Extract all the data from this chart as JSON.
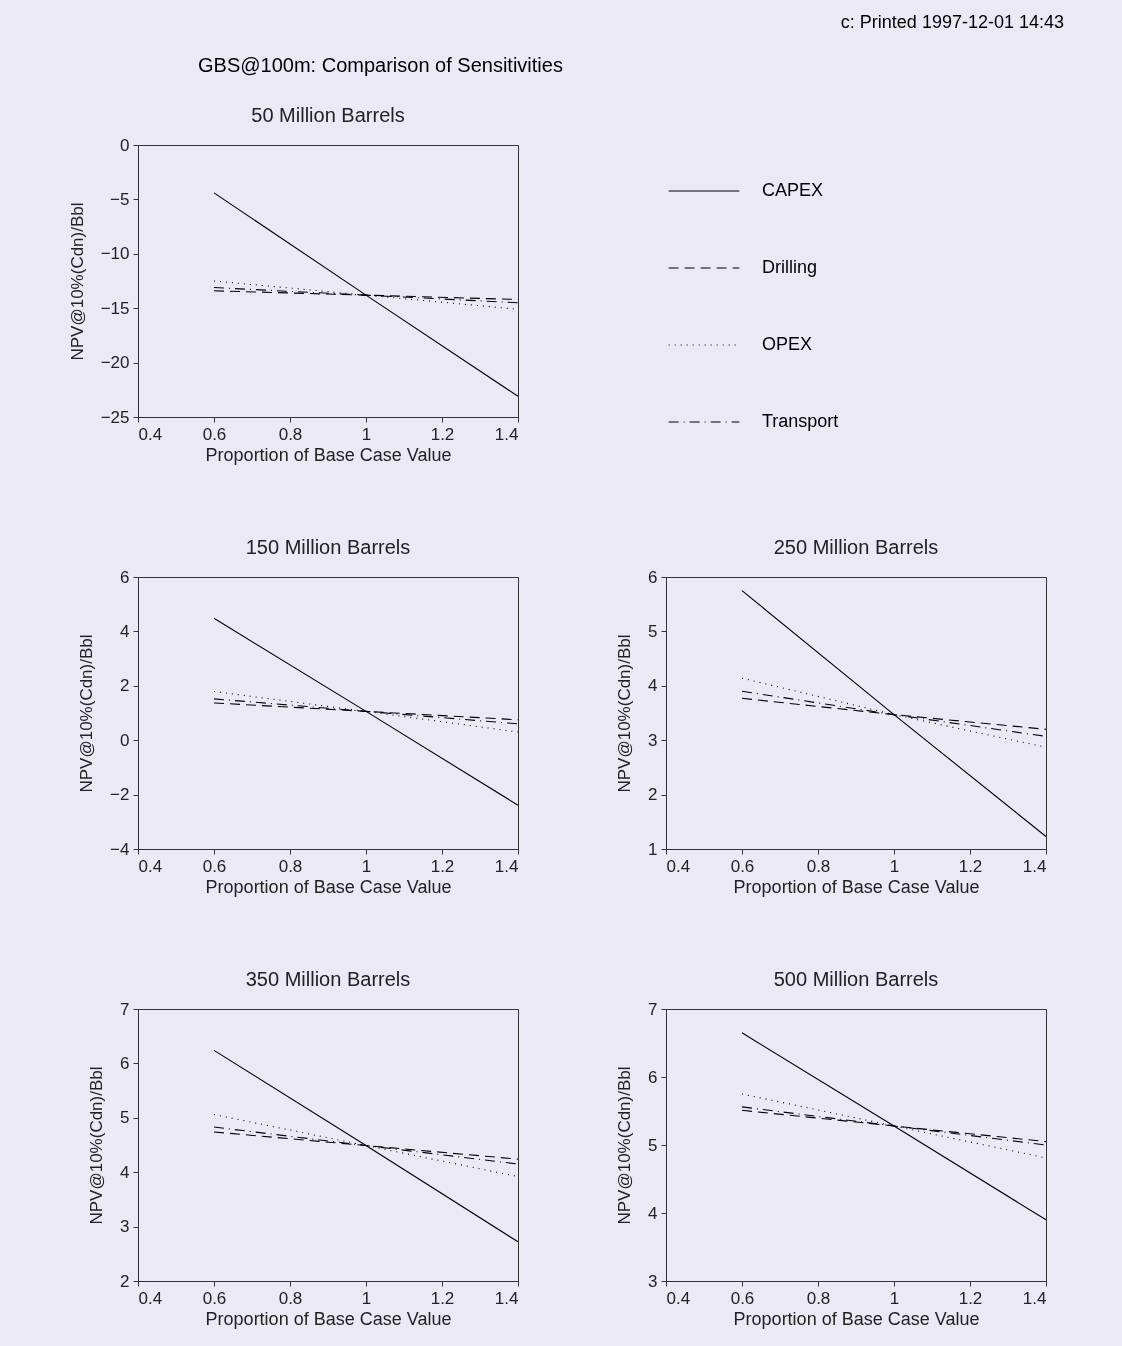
{
  "chart_data": [
    {
      "type": "line",
      "title": "50 Million Barrels",
      "xlabel": "Proportion of Base Case Value",
      "ylabel": "NPV@10%(Cdn)/Bbl",
      "annotations": [
        "GBS@100m: Comparison of Sensitivities",
        "c: Printed 1997-12-01 14:43"
      ],
      "x": [
        0.6,
        1,
        1.4
      ],
      "xlim": [
        0.4,
        1.4
      ],
      "xticks": [
        0.4,
        0.6,
        0.8,
        1,
        1.2,
        1.4
      ],
      "ylim": [
        -25,
        0
      ],
      "yticks": [
        -25,
        -20,
        -15,
        -10,
        -5,
        0
      ],
      "grid": false,
      "legend": "right",
      "series": [
        {
          "name": "CAPEX",
          "color": "#000000",
          "line_style": "solid",
          "values": [
            -4.4,
            -13.8,
            -23.1
          ]
        },
        {
          "name": "Drilling",
          "color": "#000000",
          "line_style": "dashed",
          "values": [
            -13.4,
            -13.8,
            -14.2
          ]
        },
        {
          "name": "OPEX",
          "color": "#000000",
          "line_style": "dotted",
          "values": [
            -12.5,
            -13.8,
            -15.1
          ]
        },
        {
          "name": "Transport",
          "color": "#000000",
          "line_style": "dashdot",
          "values": [
            -13.1,
            -13.8,
            -14.5
          ]
        }
      ]
    },
    {
      "type": "line",
      "title": "150 Million Barrels",
      "xlabel": "Proportion of Base Case Value",
      "ylabel": "NPV@10%(Cdn)/Bbl",
      "x": [
        0.6,
        1,
        1.4
      ],
      "xlim": [
        0.4,
        1.4
      ],
      "xticks": [
        0.4,
        0.6,
        0.8,
        1,
        1.2,
        1.4
      ],
      "ylim": [
        -4,
        6
      ],
      "yticks": [
        -4,
        -2,
        0,
        2,
        4,
        6
      ],
      "grid": false,
      "series": [
        {
          "color": "#000000",
          "line_style": "solid",
          "values": [
            4.48,
            1.06,
            -2.39
          ]
        },
        {
          "color": "#000000",
          "line_style": "dashed",
          "values": [
            1.37,
            1.06,
            0.75
          ]
        },
        {
          "color": "#000000",
          "line_style": "dotted",
          "values": [
            1.79,
            1.06,
            0.3
          ]
        },
        {
          "color": "#000000",
          "line_style": "dashdot",
          "values": [
            1.52,
            1.06,
            0.6
          ]
        }
      ]
    },
    {
      "type": "line",
      "title": "250 Million Barrels",
      "xlabel": "Proportion of Base Case Value",
      "ylabel": "NPV@10%(Cdn)/Bbl",
      "x": [
        0.6,
        1,
        1.4
      ],
      "xlim": [
        0.4,
        1.4
      ],
      "xticks": [
        0.4,
        0.6,
        0.8,
        1,
        1.2,
        1.4
      ],
      "ylim": [
        1,
        6
      ],
      "yticks": [
        1,
        2,
        3,
        4,
        5,
        6
      ],
      "grid": false,
      "series": [
        {
          "color": "#000000",
          "line_style": "solid",
          "values": [
            5.75,
            3.47,
            1.23
          ]
        },
        {
          "color": "#000000",
          "line_style": "dashed",
          "values": [
            3.77,
            3.47,
            3.2
          ]
        },
        {
          "color": "#000000",
          "line_style": "dotted",
          "values": [
            4.14,
            3.47,
            2.87
          ]
        },
        {
          "color": "#000000",
          "line_style": "dashdot",
          "values": [
            3.9,
            3.47,
            3.07
          ]
        }
      ]
    },
    {
      "type": "line",
      "title": "350 Million Barrels",
      "xlabel": "Proportion of Base Case Value",
      "ylabel": "NPV@10%(Cdn)/Bbl",
      "x": [
        0.6,
        1,
        1.4
      ],
      "xlim": [
        0.4,
        1.4
      ],
      "xticks": [
        0.4,
        0.6,
        0.8,
        1,
        1.2,
        1.4
      ],
      "ylim": [
        2,
        7
      ],
      "yticks": [
        2,
        3,
        4,
        5,
        6,
        7
      ],
      "grid": false,
      "series": [
        {
          "color": "#000000",
          "line_style": "solid",
          "values": [
            6.24,
            4.49,
            2.72
          ]
        },
        {
          "color": "#000000",
          "line_style": "dashed",
          "values": [
            4.74,
            4.49,
            4.24
          ]
        },
        {
          "color": "#000000",
          "line_style": "dotted",
          "values": [
            5.06,
            4.49,
            3.92
          ]
        },
        {
          "color": "#000000",
          "line_style": "dashdot",
          "values": [
            4.83,
            4.49,
            4.15
          ]
        }
      ]
    },
    {
      "type": "line",
      "title": "500 Million Barrels",
      "xlabel": "Proportion of Base Case Value",
      "ylabel": "NPV@10%(Cdn)/Bbl",
      "x": [
        0.6,
        1,
        1.4
      ],
      "xlim": [
        0.4,
        1.4
      ],
      "xticks": [
        0.4,
        0.6,
        0.8,
        1,
        1.2,
        1.4
      ],
      "ylim": [
        3,
        7
      ],
      "yticks": [
        3,
        4,
        5,
        6,
        7
      ],
      "grid": false,
      "series": [
        {
          "color": "#000000",
          "line_style": "solid",
          "values": [
            6.65,
            5.28,
            3.9
          ]
        },
        {
          "color": "#000000",
          "line_style": "dashed",
          "values": [
            5.51,
            5.28,
            5.05
          ]
        },
        {
          "color": "#000000",
          "line_style": "dotted",
          "values": [
            5.75,
            5.28,
            4.81
          ]
        },
        {
          "color": "#000000",
          "line_style": "dashdot",
          "values": [
            5.56,
            5.28,
            5.0
          ]
        }
      ]
    }
  ]
}
